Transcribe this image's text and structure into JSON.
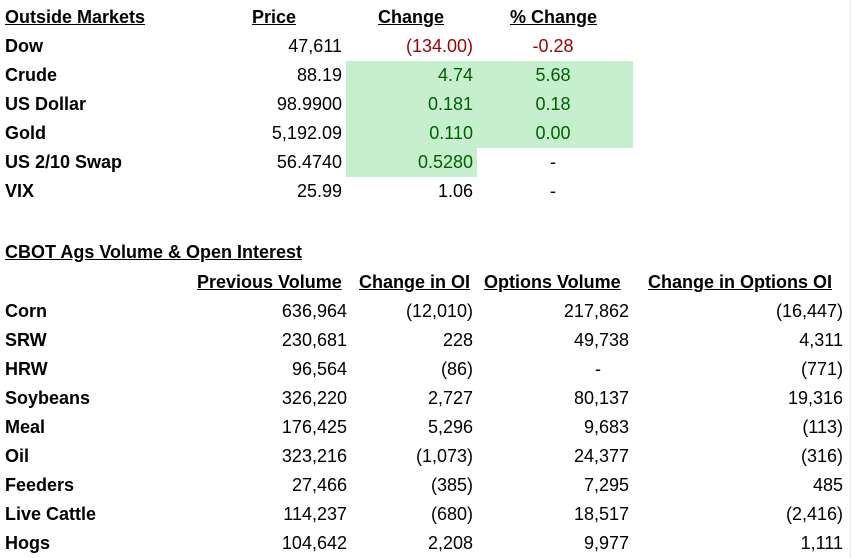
{
  "outside_markets": {
    "title": "Outside Markets",
    "headers": {
      "price": "Price",
      "change": "Change",
      "pct_change": "% Change"
    },
    "rows": [
      {
        "name": "Dow",
        "price": "47,611",
        "change": "(134.00)",
        "pct": "-0.28"
      },
      {
        "name": "Crude",
        "price": "88.19",
        "change": "4.74",
        "pct": "5.68"
      },
      {
        "name": "US Dollar",
        "price": "98.9900",
        "change": "0.181",
        "pct": "0.18"
      },
      {
        "name": "Gold",
        "price": "5,192.09",
        "change": "0.110",
        "pct": "0.00"
      },
      {
        "name": "US 2/10 Swap",
        "price": "56.4740",
        "change": "0.5280",
        "pct": "-"
      },
      {
        "name": "VIX",
        "price": "25.99",
        "change": "1.06",
        "pct": "-"
      }
    ],
    "colors": {
      "negative_text": "#9c0006",
      "positive_text": "#006100",
      "positive_fill": "#c6efce"
    }
  },
  "cbot": {
    "title": "CBOT Ags Volume & Open Interest",
    "headers": {
      "previous_volume": "Previous Volume",
      "change_in_oi": "Change in OI",
      "options_volume": "Options Volume",
      "change_in_options_oi": "Change in Options OI"
    },
    "rows": [
      {
        "name": "Corn",
        "volume": "636,964",
        "oi": "(12,010)",
        "options_volume": "217,862",
        "options_oi": "(16,447)"
      },
      {
        "name": "SRW",
        "volume": "230,681",
        "oi": "228",
        "options_volume": "49,738",
        "options_oi": "4,311"
      },
      {
        "name": "HRW",
        "volume": "96,564",
        "oi": "(86)",
        "options_volume": "-",
        "options_oi": "(771)"
      },
      {
        "name": "Soybeans",
        "volume": "326,220",
        "oi": "2,727",
        "options_volume": "80,137",
        "options_oi": "19,316"
      },
      {
        "name": "Meal",
        "volume": "176,425",
        "oi": "5,296",
        "options_volume": "9,683",
        "options_oi": "(113)"
      },
      {
        "name": "Oil",
        "volume": "323,216",
        "oi": "(1,073)",
        "options_volume": "24,377",
        "options_oi": "(316)"
      },
      {
        "name": "Feeders",
        "volume": "27,466",
        "oi": "(385)",
        "options_volume": "7,295",
        "options_oi": "485"
      },
      {
        "name": "Live Cattle",
        "volume": "114,237",
        "oi": "(680)",
        "options_volume": "18,517",
        "options_oi": "(2,416)"
      },
      {
        "name": "Hogs",
        "volume": "104,642",
        "oi": "2,208",
        "options_volume": "9,977",
        "options_oi": "1,111"
      }
    ]
  }
}
